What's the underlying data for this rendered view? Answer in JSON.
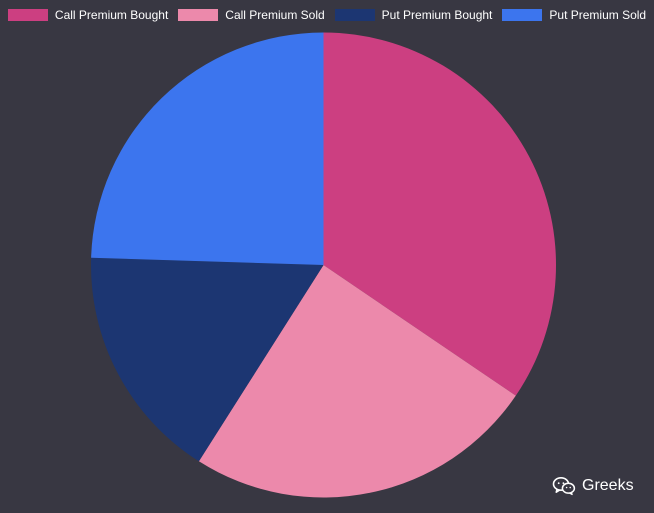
{
  "chart_data": {
    "type": "pie",
    "series": [
      {
        "name": "Call Premium Bought",
        "value": 34.5,
        "color": "#cc3f81"
      },
      {
        "name": "Call Premium Sold",
        "value": 24.5,
        "color": "#ec89ab"
      },
      {
        "name": "Put Premium Bought",
        "value": 16.5,
        "color": "#1c3672"
      },
      {
        "name": "Put Premium Sold",
        "value": 24.5,
        "color": "#3c75ee"
      }
    ],
    "legend_position": "top",
    "start_angle": "top, clockwise"
  },
  "watermark": {
    "icon": "wechat-icon",
    "text": "Greeks"
  }
}
